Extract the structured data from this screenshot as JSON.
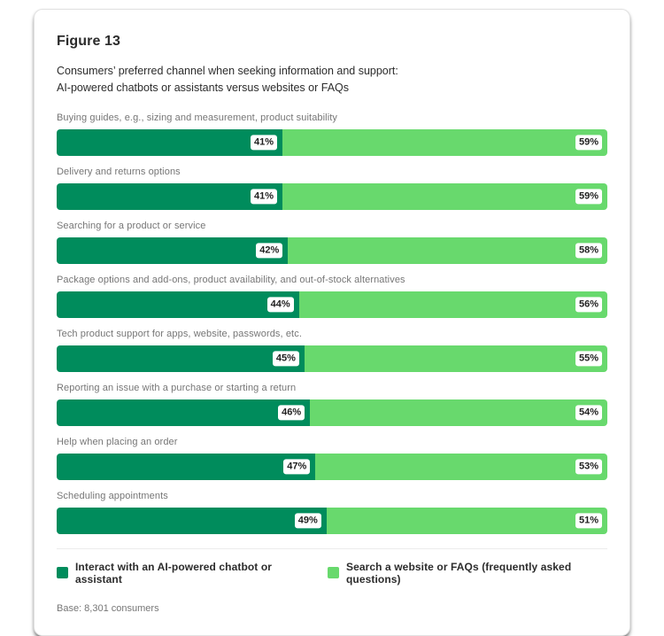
{
  "figure": {
    "label": "Figure 13",
    "title_line1": "Consumers’ preferred channel when seeking information and support:",
    "title_line2": "AI-powered chatbots or assistants versus websites or FAQs",
    "base_note": "Base: 8,301 consumers"
  },
  "colors": {
    "chatbot": "#008c5c",
    "website": "#68d96d",
    "value_pill_bg": "#ffffff",
    "value_pill_text": "#1f1f1f"
  },
  "chart_data": {
    "type": "bar",
    "orientation": "horizontal-stacked",
    "title": "Figure 13 — Consumers’ preferred channel when seeking information and support: AI-powered chatbots or assistants versus websites or FAQs",
    "categories": [
      "Buying guides, e.g., sizing and measurement, product suitability",
      "Delivery and returns options",
      "Searching for a product or service",
      "Package options and add-ons, product availability, and out-of-stock alternatives",
      "Tech product support for apps, website, passwords, etc.",
      "Reporting an issue with a purchase or starting a return",
      "Help when placing an order",
      "Scheduling appointments"
    ],
    "series": [
      {
        "name": "Interact with an AI-powered chatbot or assistant",
        "color": "#008c5c",
        "values": [
          41,
          41,
          42,
          44,
          45,
          46,
          47,
          49
        ]
      },
      {
        "name": "Search a website or FAQs (frequently asked questions)",
        "color": "#68d96d",
        "values": [
          59,
          59,
          58,
          56,
          55,
          54,
          53,
          51
        ]
      }
    ],
    "value_suffix": "%",
    "xlim": [
      0,
      100
    ],
    "grid": false,
    "legend_position": "bottom",
    "annotations": "Base: 8,301 consumers"
  }
}
